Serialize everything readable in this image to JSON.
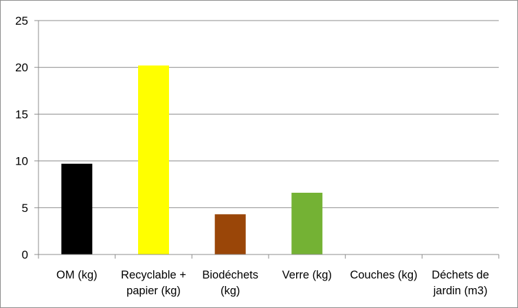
{
  "chart_data": {
    "type": "bar",
    "categories": [
      [
        "OM (kg)"
      ],
      [
        "Recyclable +",
        "papier (kg)"
      ],
      [
        "Biodéchets",
        "(kg)"
      ],
      [
        "Verre (kg)"
      ],
      [
        "Couches (kg)"
      ],
      [
        "Déchets de",
        "jardin (m3)"
      ]
    ],
    "values": [
      9.7,
      20.2,
      4.3,
      6.6,
      0,
      0
    ],
    "colors": [
      "#000000",
      "#ffff00",
      "#9a4608",
      "#74b234",
      "#cccccc",
      "#cccccc"
    ],
    "ylim": [
      0,
      25
    ],
    "yticks": [
      0,
      5,
      10,
      15,
      20,
      25
    ],
    "grid": true,
    "legend": "none",
    "title": "",
    "xlabel": "",
    "ylabel": ""
  }
}
